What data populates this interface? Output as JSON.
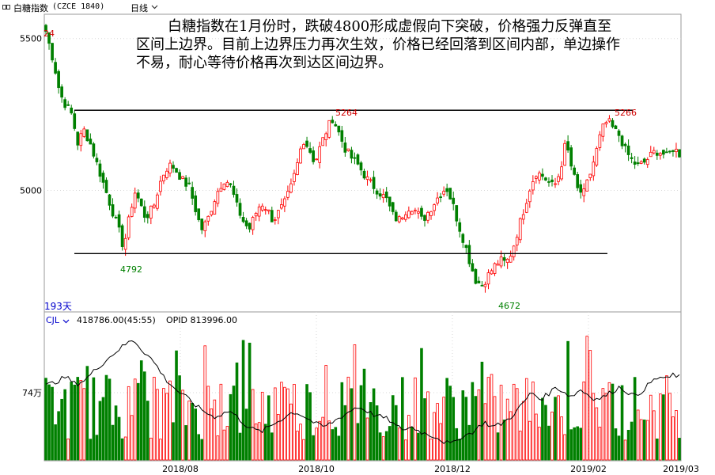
{
  "header": {
    "name": "白糖指数",
    "code": "(CZCE 1840)",
    "period": "日线"
  },
  "annotation": "白糖指数在1月份时，跌破4800形成虚假向下突破，价格强力反弹直至区间上边界。目前上边界压力再次生效，价格已经回落到区间内部，单边操作不易，耐心等待价格再次到达区间边界。",
  "price_panel": {
    "bars_label": "193天",
    "marks": {
      "high_start": "24",
      "low1": "4792",
      "peak1": "5264",
      "low2": "4672",
      "peak2": "5266"
    }
  },
  "volume_panel": {
    "indicator": "CJL",
    "volume_readout": "418786.00(45:55)",
    "oi_readout": "OPID 813996.00"
  },
  "colors": {
    "up": "#ff0000",
    "down": "#008000",
    "line": "#000000",
    "grid": "#d8d8d8"
  },
  "chart_data": {
    "type": "candlestick",
    "title": "",
    "price_axis": {
      "ticks": [
        5500,
        5000
      ],
      "range": [
        4600,
        5580
      ]
    },
    "volume_axis": {
      "ticks": [
        "74万"
      ]
    },
    "x_ticks": [
      "2018/08",
      "2018/10",
      "2018/12",
      "2019/02",
      "2019/03"
    ],
    "levels": {
      "resistance": 5264,
      "support": 4792
    },
    "price_path": [
      [
        0,
        5524
      ],
      [
        8,
        5420
      ],
      [
        14,
        5320
      ],
      [
        20,
        5280
      ],
      [
        26,
        5250
      ],
      [
        32,
        5155
      ],
      [
        38,
        5200
      ],
      [
        44,
        5160
      ],
      [
        52,
        5080
      ],
      [
        60,
        5000
      ],
      [
        68,
        4920
      ],
      [
        74,
        4860
      ],
      [
        78,
        4810
      ],
      [
        82,
        4880
      ],
      [
        86,
        4950
      ],
      [
        90,
        5000
      ],
      [
        94,
        4960
      ],
      [
        100,
        4910
      ],
      [
        108,
        4945
      ],
      [
        114,
        5020
      ],
      [
        120,
        5070
      ],
      [
        126,
        5085
      ],
      [
        132,
        5060
      ],
      [
        138,
        5030
      ],
      [
        144,
        5010
      ],
      [
        150,
        4940
      ],
      [
        156,
        4870
      ],
      [
        162,
        4900
      ],
      [
        168,
        4960
      ],
      [
        174,
        5010
      ],
      [
        180,
        5040
      ],
      [
        186,
        5010
      ],
      [
        192,
        4945
      ],
      [
        198,
        4900
      ],
      [
        204,
        4870
      ],
      [
        210,
        4920
      ],
      [
        216,
        4960
      ],
      [
        222,
        4940
      ],
      [
        228,
        4900
      ],
      [
        234,
        4930
      ],
      [
        240,
        4960
      ],
      [
        246,
        5010
      ],
      [
        252,
        5080
      ],
      [
        258,
        5170
      ],
      [
        264,
        5140
      ],
      [
        270,
        5090
      ],
      [
        276,
        5150
      ],
      [
        282,
        5200
      ],
      [
        288,
        5240
      ],
      [
        294,
        5190
      ],
      [
        300,
        5140
      ],
      [
        306,
        5110
      ],
      [
        312,
        5090
      ],
      [
        318,
        5060
      ],
      [
        324,
        5030
      ],
      [
        330,
        5010
      ],
      [
        336,
        4990
      ],
      [
        342,
        4970
      ],
      [
        348,
        4920
      ],
      [
        354,
        4900
      ],
      [
        360,
        4930
      ],
      [
        366,
        4950
      ],
      [
        372,
        4930
      ],
      [
        378,
        4900
      ],
      [
        384,
        4930
      ],
      [
        390,
        4960
      ],
      [
        396,
        4990
      ],
      [
        402,
        5010
      ],
      [
        408,
        4960
      ],
      [
        414,
        4890
      ],
      [
        420,
        4830
      ],
      [
        426,
        4760
      ],
      [
        432,
        4700
      ],
      [
        438,
        4690
      ],
      [
        444,
        4720
      ],
      [
        450,
        4750
      ],
      [
        456,
        4770
      ],
      [
        462,
        4760
      ],
      [
        468,
        4800
      ],
      [
        474,
        4870
      ],
      [
        480,
        4940
      ],
      [
        486,
        5010
      ],
      [
        492,
        5060
      ],
      [
        498,
        5050
      ],
      [
        504,
        5030
      ],
      [
        510,
        5010
      ],
      [
        516,
        5060
      ],
      [
        522,
        5160
      ],
      [
        528,
        5070
      ],
      [
        534,
        5000
      ],
      [
        540,
        4990
      ],
      [
        546,
        5050
      ],
      [
        552,
        5120
      ],
      [
        558,
        5200
      ],
      [
        564,
        5230
      ],
      [
        570,
        5200
      ],
      [
        576,
        5180
      ],
      [
        582,
        5130
      ],
      [
        588,
        5100
      ],
      [
        594,
        5080
      ],
      [
        600,
        5090
      ],
      [
        606,
        5110
      ],
      [
        612,
        5130
      ],
      [
        618,
        5125
      ],
      [
        624,
        5110
      ],
      [
        630,
        5140
      ],
      [
        636,
        5120
      ]
    ],
    "oi_path": [
      [
        0,
        0.55
      ],
      [
        10,
        0.58
      ],
      [
        20,
        0.62
      ],
      [
        30,
        0.56
      ],
      [
        40,
        0.6
      ],
      [
        50,
        0.68
      ],
      [
        60,
        0.75
      ],
      [
        70,
        0.82
      ],
      [
        80,
        0.88
      ],
      [
        88,
        0.92
      ],
      [
        96,
        0.84
      ],
      [
        104,
        0.78
      ],
      [
        112,
        0.7
      ],
      [
        120,
        0.6
      ],
      [
        128,
        0.54
      ],
      [
        136,
        0.48
      ],
      [
        144,
        0.44
      ],
      [
        152,
        0.38
      ],
      [
        160,
        0.34
      ],
      [
        168,
        0.3
      ],
      [
        176,
        0.32
      ],
      [
        184,
        0.35
      ],
      [
        192,
        0.3
      ],
      [
        200,
        0.24
      ],
      [
        208,
        0.2
      ],
      [
        216,
        0.18
      ],
      [
        224,
        0.22
      ],
      [
        232,
        0.26
      ],
      [
        240,
        0.3
      ],
      [
        248,
        0.34
      ],
      [
        256,
        0.32
      ],
      [
        264,
        0.28
      ],
      [
        272,
        0.24
      ],
      [
        280,
        0.22
      ],
      [
        288,
        0.26
      ],
      [
        296,
        0.3
      ],
      [
        304,
        0.34
      ],
      [
        312,
        0.38
      ],
      [
        320,
        0.36
      ],
      [
        328,
        0.32
      ],
      [
        336,
        0.3
      ],
      [
        344,
        0.28
      ],
      [
        352,
        0.22
      ],
      [
        360,
        0.2
      ],
      [
        368,
        0.22
      ],
      [
        376,
        0.18
      ],
      [
        384,
        0.16
      ],
      [
        392,
        0.14
      ],
      [
        400,
        0.1
      ],
      [
        408,
        0.08
      ],
      [
        416,
        0.14
      ],
      [
        424,
        0.16
      ],
      [
        432,
        0.2
      ],
      [
        440,
        0.26
      ],
      [
        448,
        0.22
      ],
      [
        456,
        0.24
      ],
      [
        464,
        0.28
      ],
      [
        472,
        0.34
      ],
      [
        480,
        0.42
      ],
      [
        488,
        0.5
      ],
      [
        496,
        0.44
      ],
      [
        504,
        0.48
      ],
      [
        512,
        0.54
      ],
      [
        520,
        0.5
      ],
      [
        528,
        0.46
      ],
      [
        536,
        0.52
      ],
      [
        544,
        0.48
      ],
      [
        552,
        0.44
      ],
      [
        560,
        0.46
      ],
      [
        568,
        0.5
      ],
      [
        576,
        0.54
      ],
      [
        584,
        0.5
      ],
      [
        592,
        0.46
      ],
      [
        600,
        0.52
      ],
      [
        608,
        0.58
      ],
      [
        616,
        0.62
      ],
      [
        624,
        0.6
      ],
      [
        630,
        0.64
      ],
      [
        636,
        0.62
      ]
    ]
  }
}
